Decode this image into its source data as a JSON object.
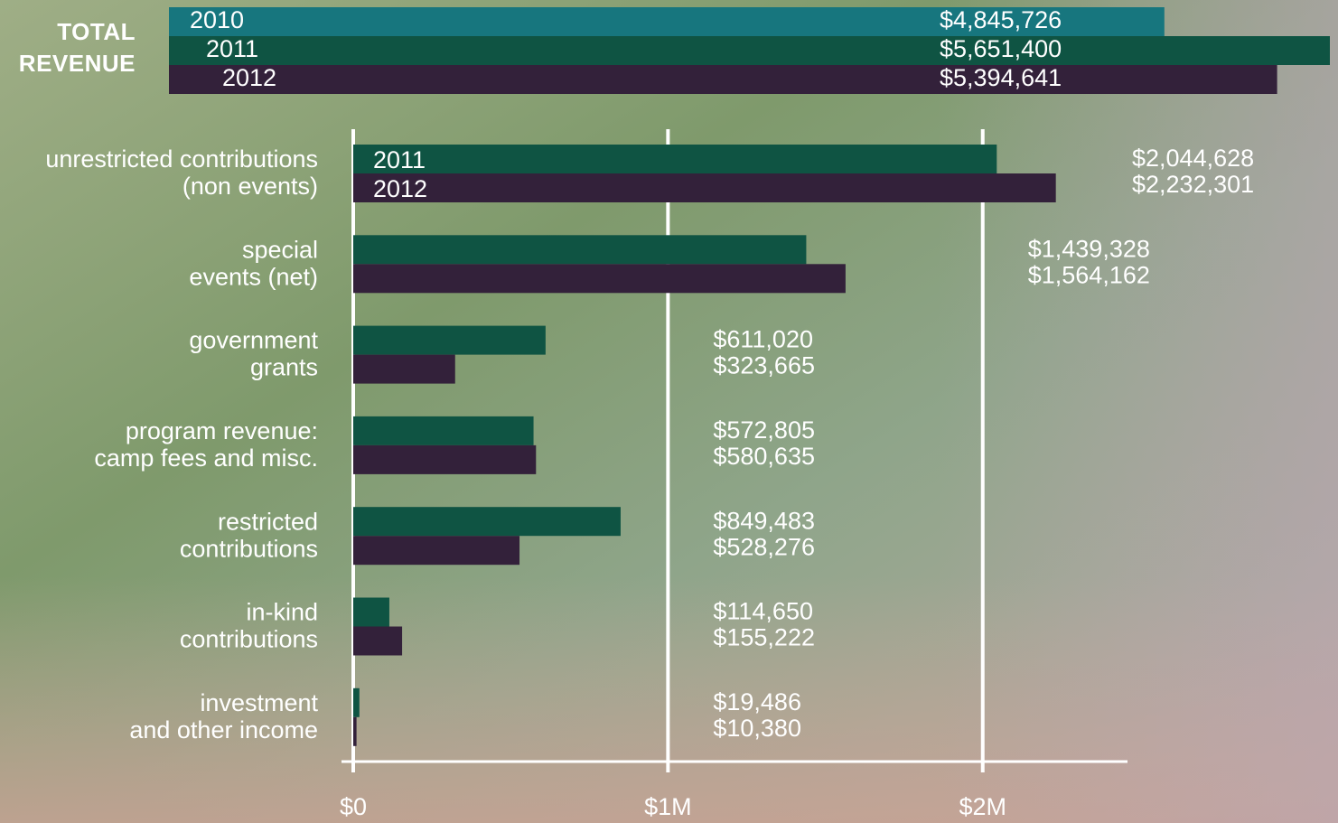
{
  "chart_data": [
    {
      "type": "bar",
      "title": "TOTAL REVENUE",
      "categories": [
        "2010",
        "2011",
        "2012"
      ],
      "values": [
        4845726,
        5651400,
        5394641
      ],
      "value_labels": [
        "$4,845,726",
        "$5,651,400",
        "$5,394,641"
      ],
      "colors": [
        "#17767e",
        "#0f5443",
        "#33213a"
      ]
    },
    {
      "type": "grouped-bar",
      "categories": [
        [
          "unrestricted contributions",
          "(non events)"
        ],
        [
          "special",
          "events (net)"
        ],
        [
          "government",
          "grants"
        ],
        [
          "program revenue:",
          "camp fees and misc."
        ],
        [
          "restricted",
          "contributions"
        ],
        [
          "in-kind",
          "contributions"
        ],
        [
          "investment",
          "and other income"
        ]
      ],
      "series": [
        {
          "name": "2011",
          "color": "#0f5443",
          "values": [
            2044628,
            1439328,
            611020,
            572805,
            849483,
            114650,
            19486
          ],
          "value_labels": [
            "$2,044,628",
            "$1,439,328",
            "$611,020",
            "$572,805",
            "$849,483",
            "$114,650",
            "$19,486"
          ]
        },
        {
          "name": "2012",
          "color": "#33213a",
          "values": [
            2232301,
            1564162,
            323665,
            580635,
            528276,
            155222,
            10380
          ],
          "value_labels": [
            "$2,232,301",
            "$1,564,162",
            "$323,665",
            "$580,635",
            "$528,276",
            "$155,222",
            "$10,380"
          ]
        }
      ],
      "xlim": [
        0,
        2460000
      ],
      "xticks": [
        {
          "value": 0,
          "label": "$0"
        },
        {
          "value": 1000000,
          "label": "$1M"
        },
        {
          "value": 2000000,
          "label": "$2M"
        }
      ],
      "grid": true
    }
  ]
}
